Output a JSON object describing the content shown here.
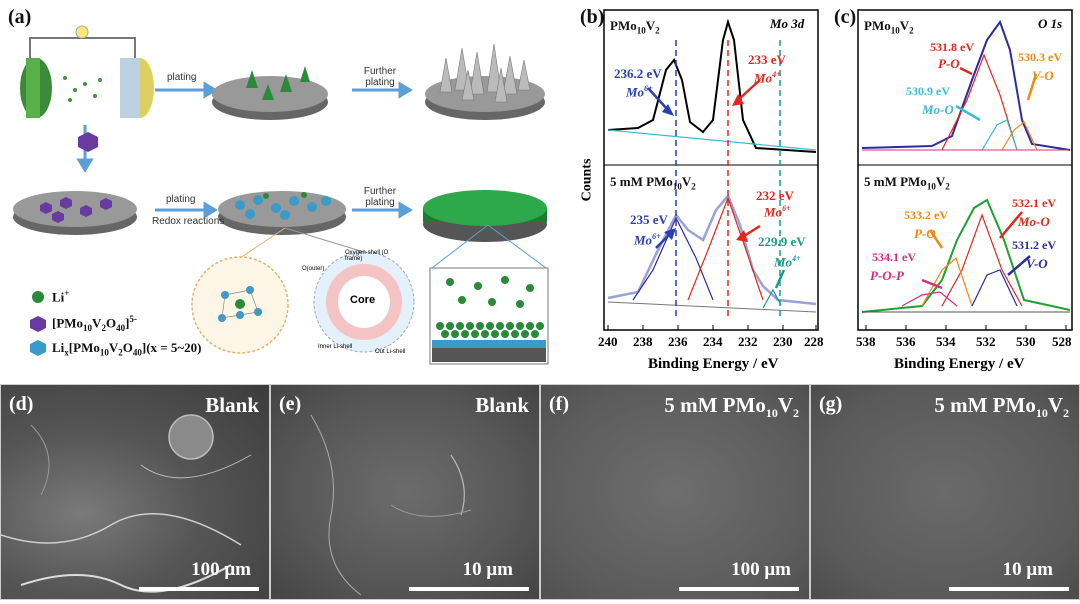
{
  "panel_a": {
    "label": "(a)",
    "arrow_labels": {
      "top_plating": "plating",
      "top_further": "Further plating",
      "bottom_plating": "plating",
      "bottom_redox": "Redox reactions",
      "bottom_further": "Further plating"
    },
    "zoom_labels": {
      "oxygen_shell": "Oxygen-shell (O frame)",
      "core": "Core",
      "o_outer": "O(outer)",
      "inner_li": "Inner Li-shell",
      "out_li": "Out Li-shell"
    },
    "legend": {
      "li": "Li",
      "li_sup": "+",
      "pmo_pre": "[PMo",
      "pmo_sub1": "10",
      "pmo_mid": "V",
      "pmo_sub2": "2",
      "pmo_mid2": "O",
      "pmo_sub3": "40",
      "pmo_end": "]",
      "pmo_sup": "5-",
      "lix_pre": "Li",
      "lix_sub": "x",
      "lix_mid": "[PMo",
      "lix_sub1": "10",
      "lix_v": "V",
      "lix_sub2": "2",
      "lix_o": "O",
      "lix_sub3": "40",
      "lix_end": "](x = 5~20)"
    }
  },
  "panel_b": {
    "label": "(b)",
    "top_sample_pre": "PMo",
    "top_sample_sub1": "10",
    "top_sample_v": "V",
    "top_sample_sub2": "2",
    "region": "Mo 3d",
    "bottom_sample_pre": "5 mM PMo",
    "bottom_sample_sub1": "10",
    "bottom_sample_v": "V",
    "bottom_sample_sub2": "2",
    "ylabel": "Counts",
    "xlabel": "Binding Energy / eV",
    "xticks": [
      "240",
      "238",
      "236",
      "234",
      "232",
      "230",
      "228"
    ],
    "annotations": {
      "top_236": "236.2 eV",
      "top_mo6": "Mo",
      "top_mo6_sup": "6+",
      "top_233": "233 eV",
      "top_mo4": "Mo",
      "top_mo4_sup": "4+",
      "bot_235": "235 eV",
      "bot_mo6": "Mo",
      "bot_mo6_sup": "6+",
      "bot_232": "232 eV",
      "bot_mo6b": "Mo",
      "bot_mo6b_sup": "6+",
      "bot_2299": "229.9 eV",
      "bot_mo4": "Mo",
      "bot_mo4_sup": "4+"
    }
  },
  "panel_c": {
    "label": "(c)",
    "top_sample_pre": "PMo",
    "top_sample_sub1": "10",
    "top_sample_v": "V",
    "top_sample_sub2": "2",
    "region": "O 1s",
    "bottom_sample_pre": "5 mM PMo",
    "bottom_sample_sub1": "10",
    "bottom_sample_v": "V",
    "bottom_sample_sub2": "2",
    "xlabel": "Binding Energy / eV",
    "xticks": [
      "538",
      "536",
      "534",
      "532",
      "530",
      "528"
    ],
    "annotations": {
      "top_5318": "531.8 eV",
      "top_po": "P-O",
      "top_5303": "530.3 eV",
      "top_vo": "V-O",
      "top_5309": "530.9 eV",
      "top_moo": "Mo-O",
      "bot_5332": "533.2 eV",
      "bot_po": "P-O",
      "bot_5321": "532.1 eV",
      "bot_moo": "Mo-O",
      "bot_5341": "534.1 eV",
      "bot_pop": "P-O-P",
      "bot_5312": "531.2 eV",
      "bot_vo": "V-O"
    }
  },
  "sem_panels": [
    {
      "label": "(d)",
      "title": "Blank",
      "scale": "100 μm"
    },
    {
      "label": "(e)",
      "title": "Blank",
      "scale": "10 μm"
    },
    {
      "label": "(f)",
      "title_pre": "5 mM PMo",
      "title_sub1": "10",
      "title_v": "V",
      "title_sub2": "2",
      "scale": "100 μm"
    },
    {
      "label": "(g)",
      "title_pre": "5 mM PMo",
      "title_sub1": "10",
      "title_v": "V",
      "title_sub2": "2",
      "scale": "10 μm"
    }
  ],
  "colors": {
    "blue_dash": "#2a3fb0",
    "red": "#e0281e",
    "teal": "#1c9a8a",
    "green": "#20a030",
    "orange": "#f08a10",
    "magenta": "#d0307a",
    "cyan": "#3fb8d8",
    "navy": "#2c2c9a"
  }
}
